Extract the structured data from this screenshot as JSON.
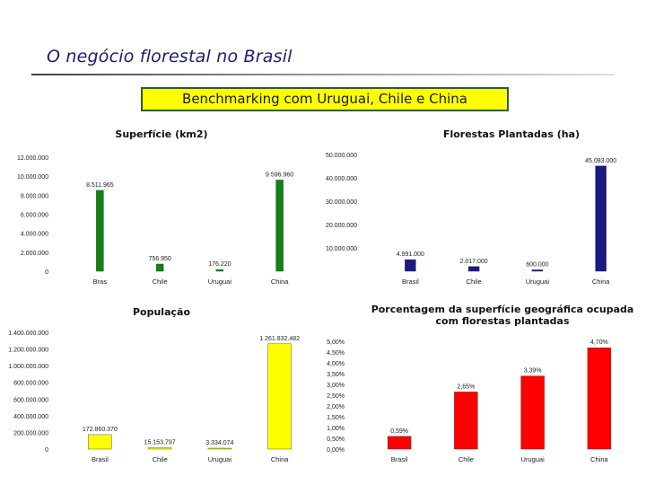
{
  "page": {
    "title": "O negócio florestal no Brasil",
    "subtitle": "Benchmarking com Uruguai, Chile e China"
  },
  "colors": {
    "title": "#1c1c6e",
    "subtitle_bg": "#ffff00",
    "subtitle_border": "#2e5b2e"
  },
  "chart_data": [
    {
      "id": "area",
      "type": "bar",
      "title": "Superfície (km2)",
      "categories": [
        "Bras",
        "Chile",
        "Uruguai",
        "China"
      ],
      "values": [
        8511965,
        756950,
        176220,
        9596960
      ],
      "value_labels": [
        "8.511.965",
        "756.950",
        "176.220",
        "9.596.960"
      ],
      "ylim": [
        0,
        12000000
      ],
      "yticks": [
        0,
        2000000,
        4000000,
        6000000,
        8000000,
        10000000,
        12000000
      ],
      "ytick_labels": [
        "0",
        "2.000.000",
        "4.000.000",
        "6.000.000",
        "8.000.000",
        "10.000.000",
        "12.000.000"
      ],
      "color": "#118411",
      "grid": false,
      "legend": "none"
    },
    {
      "id": "plantations",
      "type": "bar",
      "title": "Florestas Plantadas (ha)",
      "categories": [
        "Brasil",
        "Chile",
        "Uruguai",
        "China"
      ],
      "values": [
        4991000,
        2017000,
        600000,
        45083000
      ],
      "value_labels": [
        "4.991.000",
        "2.017.000",
        "600.000",
        "45.083.000"
      ],
      "ylim": [
        0,
        50000000
      ],
      "yticks": [
        0,
        10000000,
        20000000,
        30000000,
        40000000,
        50000000
      ],
      "ytick_labels": [
        "",
        "10.000.000",
        "20.000.000",
        "30.000.000",
        "40.000.000",
        "50.000.000"
      ],
      "color": "#1a1a80",
      "grid": false,
      "legend": "none"
    },
    {
      "id": "population",
      "type": "bar",
      "title": "População",
      "categories": [
        "Brasil",
        "Chile",
        "Uruguai",
        "China"
      ],
      "values": [
        172860370,
        15153797,
        3334074,
        1261832482
      ],
      "value_labels": [
        "172.860.370",
        "15.153.797",
        "3.334.074",
        "1.261.832.482"
      ],
      "ylim": [
        0,
        1400000000
      ],
      "yticks": [
        0,
        200000000,
        400000000,
        600000000,
        800000000,
        1000000000,
        1200000000,
        1400000000
      ],
      "ytick_labels": [
        "0",
        "200.000.000",
        "400.000.000",
        "600.000.000",
        "800.000.000",
        "1.000.000.000",
        "1.200.000.000",
        "1.400.000.000"
      ],
      "color": "#ffff00",
      "grid": false,
      "legend": "none"
    },
    {
      "id": "percentage",
      "type": "bar",
      "title": "Porcentagem da superfície geográfica ocupada com florestas plantadas",
      "categories": [
        "Brasil",
        "Chile",
        "Uruguai",
        "China"
      ],
      "values": [
        0.59,
        2.65,
        3.39,
        4.7
      ],
      "value_labels": [
        "0,59%",
        "2,65%",
        "3,39%",
        "4,70%"
      ],
      "ylim": [
        0,
        5
      ],
      "yticks": [
        0,
        0.5,
        1,
        1.5,
        2,
        2.5,
        3,
        3.5,
        4,
        4.5,
        5
      ],
      "ytick_labels": [
        "0,00%",
        "0,50%",
        "1,00%",
        "1,50%",
        "2,00%",
        "2,50%",
        "3,00%",
        "3,50%",
        "4,00%",
        "4,50%",
        "5,00%"
      ],
      "color": "#ff0000",
      "grid": false,
      "legend": "none"
    }
  ]
}
